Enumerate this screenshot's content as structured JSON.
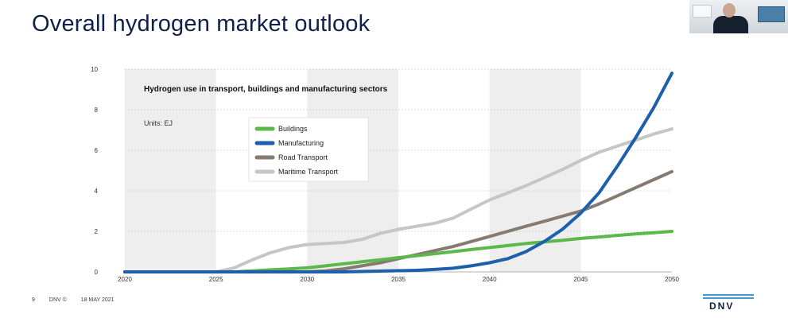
{
  "slide": {
    "title": "Overall hydrogen market outlook",
    "page_number": "9",
    "copyright": "DNV ©",
    "date": "18 MAY 2021",
    "logo_text": "DNV"
  },
  "colors": {
    "title": "#0f204b",
    "band": "#eeeeee",
    "buildings": "#5cb84a",
    "manufacturing": "#1d5fad",
    "road_transport": "#857b70",
    "maritime_transport": "#c6c6c6",
    "logo_bars": "#3f9bd0"
  },
  "chart_data": {
    "type": "line",
    "title": "Hydrogen use in transport, buildings and manufacturing sectors",
    "subtitle": "Units: EJ",
    "xlabel": "",
    "ylabel": "",
    "xlim": [
      2020,
      2050
    ],
    "ylim": [
      0,
      10
    ],
    "x_ticks": [
      "2020",
      "2025",
      "2030",
      "2035",
      "2040",
      "2045",
      "2050"
    ],
    "y_ticks": [
      "0",
      "2",
      "4",
      "6",
      "8",
      "10"
    ],
    "grid": "horizontal dashed",
    "legend_position": "top-center",
    "x": [
      2020,
      2022,
      2024,
      2025,
      2026,
      2027,
      2028,
      2029,
      2030,
      2031,
      2032,
      2033,
      2034,
      2035,
      2036,
      2037,
      2038,
      2039,
      2040,
      2041,
      2042,
      2043,
      2044,
      2045,
      2046,
      2047,
      2048,
      2049,
      2050
    ],
    "series": [
      {
        "name": "Buildings",
        "color": "#5cb84a",
        "values": [
          0,
          0,
          0,
          0,
          0,
          0.05,
          0.1,
          0.15,
          0.2,
          0.3,
          0.4,
          0.5,
          0.6,
          0.7,
          0.8,
          0.9,
          1.0,
          1.1,
          1.2,
          1.3,
          1.4,
          1.48,
          1.56,
          1.65,
          1.72,
          1.8,
          1.87,
          1.93,
          2.0
        ]
      },
      {
        "name": "Manufacturing",
        "color": "#1d5fad",
        "values": [
          0,
          0,
          0,
          0,
          0,
          0,
          0,
          0,
          0,
          0,
          0,
          0.02,
          0.04,
          0.06,
          0.08,
          0.12,
          0.18,
          0.3,
          0.45,
          0.65,
          1.0,
          1.5,
          2.1,
          2.9,
          3.9,
          5.2,
          6.6,
          8.1,
          9.8
        ]
      },
      {
        "name": "Road Transport",
        "color": "#857b70",
        "values": [
          0,
          0,
          0,
          0,
          0,
          0,
          0,
          0,
          0,
          0.05,
          0.15,
          0.3,
          0.45,
          0.65,
          0.85,
          1.05,
          1.25,
          1.5,
          1.75,
          2.0,
          2.25,
          2.5,
          2.75,
          3.0,
          3.35,
          3.75,
          4.15,
          4.55,
          4.95
        ]
      },
      {
        "name": "Maritime Transport",
        "color": "#c6c6c6",
        "values": [
          0,
          0,
          0,
          0,
          0.2,
          0.6,
          0.95,
          1.2,
          1.35,
          1.4,
          1.45,
          1.6,
          1.9,
          2.1,
          2.25,
          2.4,
          2.65,
          3.1,
          3.55,
          3.9,
          4.25,
          4.65,
          5.05,
          5.5,
          5.9,
          6.2,
          6.5,
          6.8,
          7.05
        ]
      }
    ]
  }
}
